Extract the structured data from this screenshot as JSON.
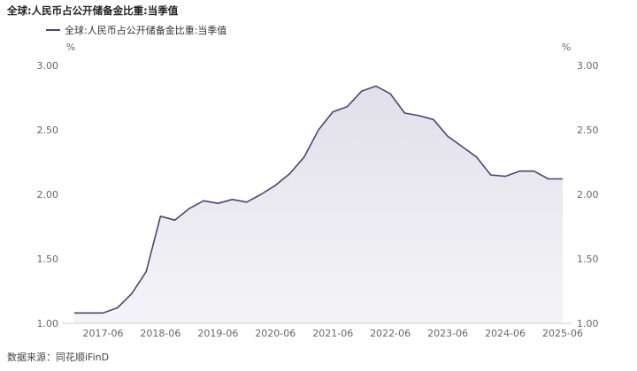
{
  "chart_data": {
    "type": "area",
    "title": "全球:人民币占公开储备金比重:当季值",
    "series": [
      {
        "name": "全球:人民币占公开储备金比重:当季值",
        "x": [
          "2016-Q4",
          "2017-Q1",
          "2017-Q2",
          "2017-Q3",
          "2017-Q4",
          "2018-Q1",
          "2018-Q2",
          "2018-Q3",
          "2018-Q4",
          "2019-Q1",
          "2019-Q2",
          "2019-Q3",
          "2019-Q4",
          "2020-Q1",
          "2020-Q2",
          "2020-Q3",
          "2020-Q4",
          "2021-Q1",
          "2021-Q2",
          "2021-Q3",
          "2021-Q4",
          "2022-Q1",
          "2022-Q2",
          "2022-Q3",
          "2022-Q4",
          "2023-Q1",
          "2023-Q2",
          "2023-Q3",
          "2023-Q4",
          "2024-Q1",
          "2024-Q2",
          "2024-Q3",
          "2024-Q4",
          "2025-Q1",
          "2025-Q2"
        ],
        "values": [
          1.08,
          1.08,
          1.08,
          1.12,
          1.23,
          1.4,
          1.83,
          1.8,
          1.89,
          1.95,
          1.93,
          1.96,
          1.94,
          2.0,
          2.07,
          2.16,
          2.29,
          2.5,
          2.64,
          2.68,
          2.8,
          2.84,
          2.78,
          2.63,
          2.61,
          2.58,
          2.45,
          2.37,
          2.29,
          2.15,
          2.14,
          2.18,
          2.18,
          2.12,
          2.12
        ]
      }
    ],
    "x_tick_labels": [
      "2017-06",
      "2018-06",
      "2019-06",
      "2020-06",
      "2021-06",
      "2022-06",
      "2023-06",
      "2024-06",
      "2025-06"
    ],
    "y_ticks": [
      1.0,
      1.5,
      2.0,
      2.5,
      3.0
    ],
    "y_tick_labels": [
      "1.00",
      "1.50",
      "2.00",
      "2.50",
      "3.00"
    ],
    "y_unit_left": "%",
    "y_unit_right": "%",
    "ylim": [
      1.0,
      3.0
    ],
    "grid": false,
    "legend_position": "top-left",
    "colors": {
      "line": "#4a4673",
      "fill": "#e1e0ea",
      "axis": "#cccccc",
      "tick_text": "#666666"
    }
  },
  "source_text": "数据来源：同花顺iFinD"
}
